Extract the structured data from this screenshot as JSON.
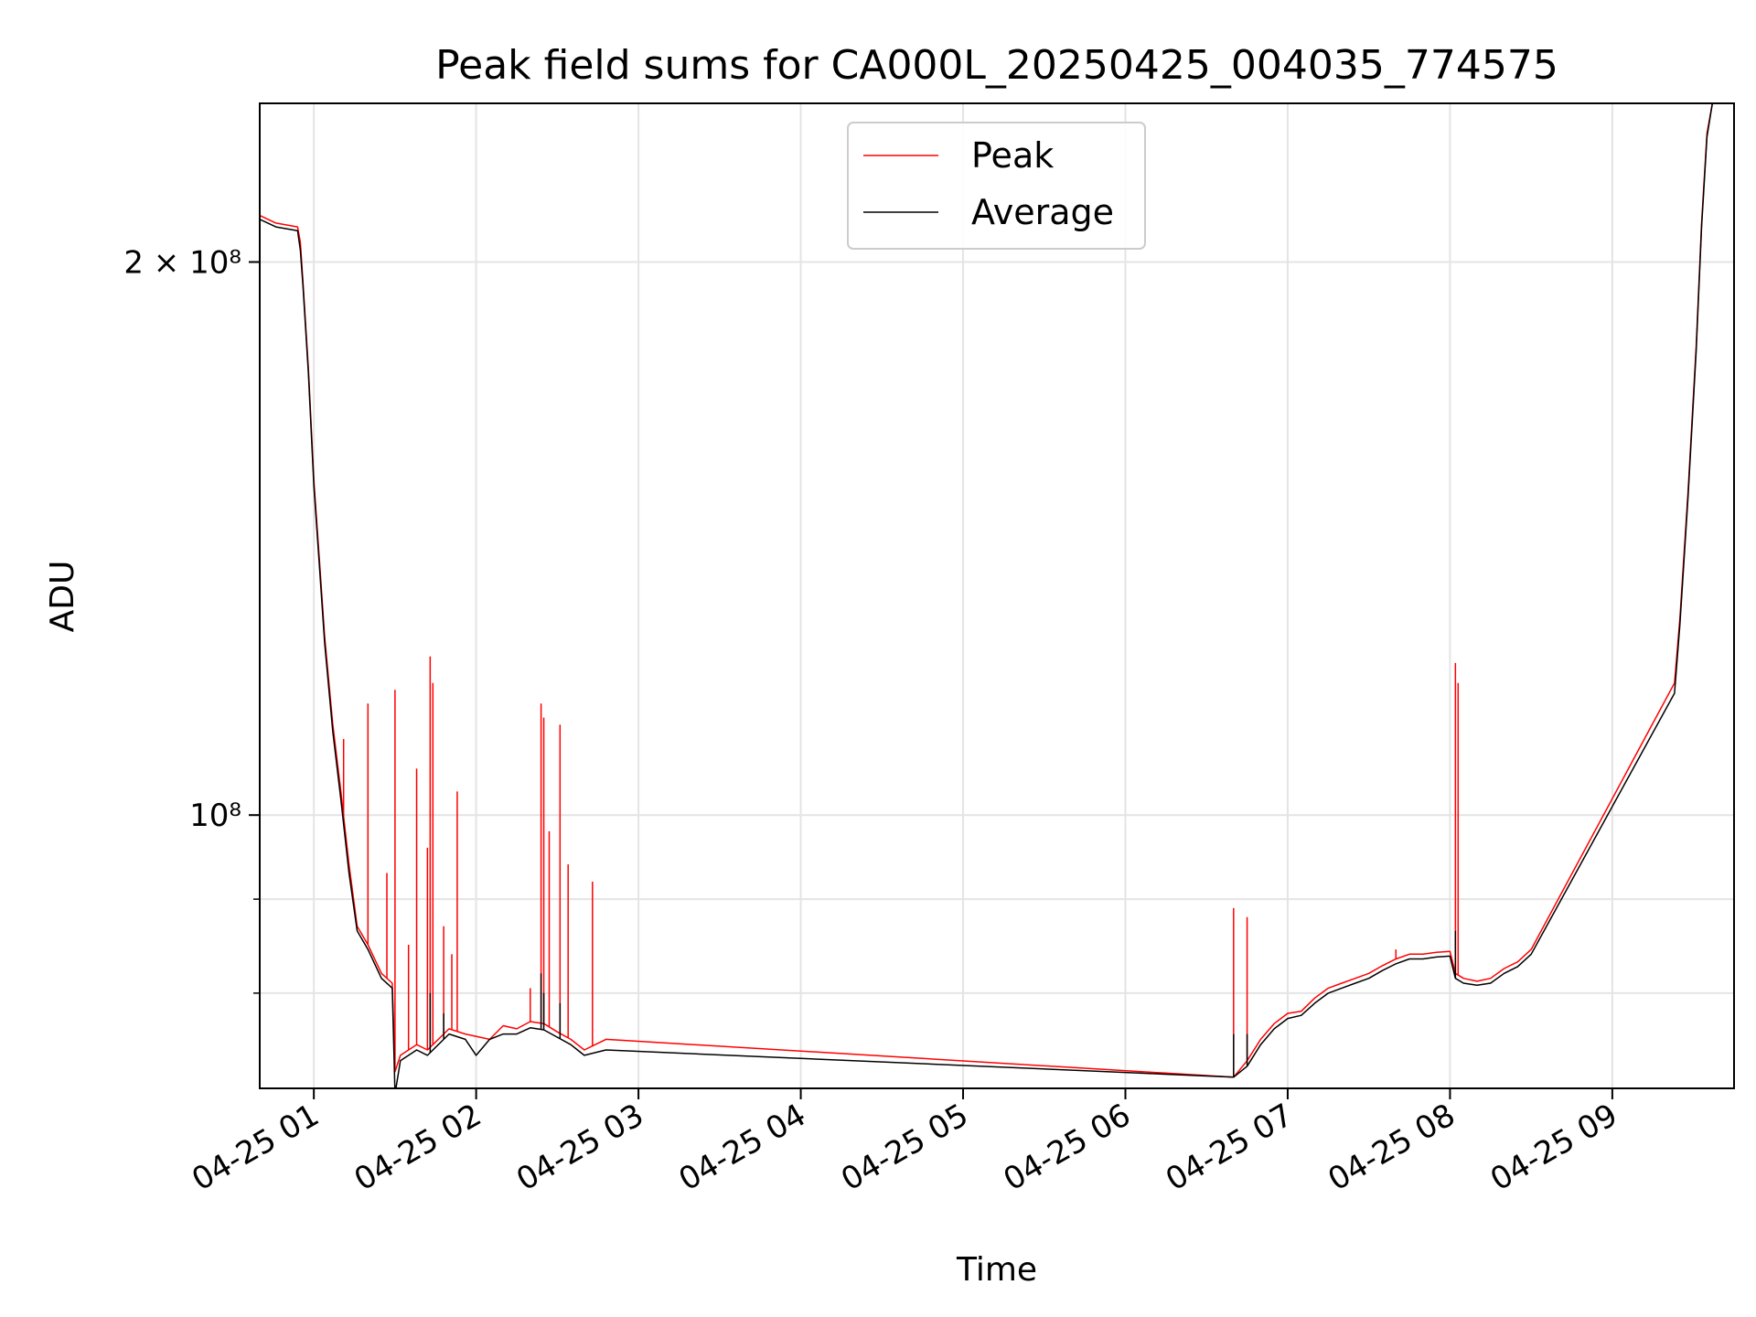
{
  "chart_data": {
    "type": "line",
    "title": "Peak field sums for CA000L_20250425_004035_774575",
    "xlabel": "Time",
    "ylabel": "ADU",
    "yscale": "log",
    "xlim": [
      "2025-04-25T00:40",
      "2025-04-25T09:45"
    ],
    "ylim": [
      71000000,
      244000000
    ],
    "grid": true,
    "legend": {
      "placement": "top-center"
    },
    "x_ticks": [
      {
        "label": "04-25 01",
        "t": "2025-04-25T01:00"
      },
      {
        "label": "04-25 02",
        "t": "2025-04-25T02:00"
      },
      {
        "label": "04-25 03",
        "t": "2025-04-25T03:00"
      },
      {
        "label": "04-25 04",
        "t": "2025-04-25T04:00"
      },
      {
        "label": "04-25 05",
        "t": "2025-04-25T05:00"
      },
      {
        "label": "04-25 06",
        "t": "2025-04-25T06:00"
      },
      {
        "label": "04-25 07",
        "t": "2025-04-25T07:00"
      },
      {
        "label": "04-25 08",
        "t": "2025-04-25T08:00"
      },
      {
        "label": "04-25 09",
        "t": "2025-04-25T09:00"
      }
    ],
    "y_ticks": [
      {
        "label": "10⁸",
        "value": 100000000
      },
      {
        "label": "2 × 10⁸",
        "value": 200000000
      }
    ],
    "y_minor_ticks": [
      80000000,
      90000000
    ],
    "series": [
      {
        "name": "Peak",
        "color": "#ff0000",
        "points": [
          [
            "2025-04-25T00:40",
            212000000
          ],
          [
            "2025-04-25T00:46",
            210000000
          ],
          [
            "2025-04-25T00:54",
            209000000
          ],
          [
            "2025-04-25T00:55",
            205000000
          ],
          [
            "2025-04-25T00:56",
            195000000
          ],
          [
            "2025-04-25T00:58",
            175000000
          ],
          [
            "2025-04-25T01:00",
            152000000
          ],
          [
            "2025-04-25T01:02",
            138000000
          ],
          [
            "2025-04-25T01:04",
            125000000
          ],
          [
            "2025-04-25T01:07",
            112000000
          ],
          [
            "2025-04-25T01:10",
            103000000
          ],
          [
            "2025-04-25T01:13",
            94000000
          ],
          [
            "2025-04-25T01:16",
            87000000
          ],
          [
            "2025-04-25T01:20",
            85000000
          ],
          [
            "2025-04-25T01:25",
            82000000
          ],
          [
            "2025-04-25T01:29",
            81000000
          ],
          [
            "2025-04-25T01:30",
            72500000
          ],
          [
            "2025-04-25T01:32",
            74000000
          ],
          [
            "2025-04-25T01:38",
            75000000
          ],
          [
            "2025-04-25T01:42",
            74500000
          ],
          [
            "2025-04-25T01:50",
            76500000
          ],
          [
            "2025-04-25T01:56",
            76000000
          ],
          [
            "2025-04-25T02:05",
            75500000
          ],
          [
            "2025-04-25T02:10",
            76800000
          ],
          [
            "2025-04-25T02:15",
            76500000
          ],
          [
            "2025-04-25T02:20",
            77200000
          ],
          [
            "2025-04-25T02:25",
            77000000
          ],
          [
            "2025-04-25T02:30",
            76200000
          ],
          [
            "2025-04-25T02:35",
            75500000
          ],
          [
            "2025-04-25T02:40",
            74500000
          ],
          [
            "2025-04-25T02:48",
            75500000
          ],
          [
            "2025-04-25T06:40",
            72000000
          ],
          [
            "2025-04-25T06:45",
            73500000
          ],
          [
            "2025-04-25T06:50",
            75500000
          ],
          [
            "2025-04-25T06:55",
            77000000
          ],
          [
            "2025-04-25T07:00",
            78000000
          ],
          [
            "2025-04-25T07:05",
            78200000
          ],
          [
            "2025-04-25T07:10",
            79500000
          ],
          [
            "2025-04-25T07:15",
            80500000
          ],
          [
            "2025-04-25T07:20",
            81000000
          ],
          [
            "2025-04-25T07:25",
            81500000
          ],
          [
            "2025-04-25T07:30",
            82000000
          ],
          [
            "2025-04-25T07:35",
            82800000
          ],
          [
            "2025-04-25T07:40",
            83500000
          ],
          [
            "2025-04-25T07:45",
            84000000
          ],
          [
            "2025-04-25T07:50",
            84000000
          ],
          [
            "2025-04-25T07:55",
            84200000
          ],
          [
            "2025-04-25T08:00",
            84300000
          ],
          [
            "2025-04-25T08:02",
            82000000
          ],
          [
            "2025-04-25T08:05",
            81500000
          ],
          [
            "2025-04-25T08:10",
            81200000
          ],
          [
            "2025-04-25T08:15",
            81500000
          ],
          [
            "2025-04-25T08:20",
            82500000
          ],
          [
            "2025-04-25T08:25",
            83200000
          ],
          [
            "2025-04-25T08:30",
            84500000
          ],
          [
            "2025-04-25T09:23",
            118000000
          ],
          [
            "2025-04-25T09:25",
            128000000
          ],
          [
            "2025-04-25T09:28",
            150000000
          ],
          [
            "2025-04-25T09:31",
            180000000
          ],
          [
            "2025-04-25T09:33",
            210000000
          ],
          [
            "2025-04-25T09:35",
            235000000
          ],
          [
            "2025-04-25T09:37",
            244000000
          ]
        ],
        "spikes": [
          [
            "2025-04-25T01:11",
            110000000
          ],
          [
            "2025-04-25T01:20",
            115000000
          ],
          [
            "2025-04-25T01:27",
            93000000
          ],
          [
            "2025-04-25T01:30",
            117000000
          ],
          [
            "2025-04-25T01:35",
            85000000
          ],
          [
            "2025-04-25T01:38",
            106000000
          ],
          [
            "2025-04-25T01:42",
            96000000
          ],
          [
            "2025-04-25T01:43",
            122000000
          ],
          [
            "2025-04-25T01:44",
            118000000
          ],
          [
            "2025-04-25T01:48",
            87000000
          ],
          [
            "2025-04-25T01:51",
            84000000
          ],
          [
            "2025-04-25T01:53",
            103000000
          ],
          [
            "2025-04-25T02:20",
            80500000
          ],
          [
            "2025-04-25T02:24",
            115000000
          ],
          [
            "2025-04-25T02:25",
            113000000
          ],
          [
            "2025-04-25T02:27",
            98000000
          ],
          [
            "2025-04-25T02:31",
            112000000
          ],
          [
            "2025-04-25T02:34",
            94000000
          ],
          [
            "2025-04-25T02:43",
            92000000
          ],
          [
            "2025-04-25T06:40",
            89000000
          ],
          [
            "2025-04-25T06:45",
            88000000
          ],
          [
            "2025-04-25T07:40",
            84500000
          ],
          [
            "2025-04-25T08:02",
            121000000
          ],
          [
            "2025-04-25T08:03",
            118000000
          ]
        ]
      },
      {
        "name": "Average",
        "color": "#000000",
        "points": [
          [
            "2025-04-25T00:40",
            211000000
          ],
          [
            "2025-04-25T00:46",
            209000000
          ],
          [
            "2025-04-25T00:54",
            208000000
          ],
          [
            "2025-04-25T00:55",
            203000000
          ],
          [
            "2025-04-25T00:56",
            194000000
          ],
          [
            "2025-04-25T00:58",
            174000000
          ],
          [
            "2025-04-25T01:00",
            151000000
          ],
          [
            "2025-04-25T01:02",
            137000000
          ],
          [
            "2025-04-25T01:04",
            124000000
          ],
          [
            "2025-04-25T01:07",
            111000000
          ],
          [
            "2025-04-25T01:10",
            102000000
          ],
          [
            "2025-04-25T01:13",
            93000000
          ],
          [
            "2025-04-25T01:16",
            86500000
          ],
          [
            "2025-04-25T01:20",
            84500000
          ],
          [
            "2025-04-25T01:25",
            81500000
          ],
          [
            "2025-04-25T01:29",
            80500000
          ],
          [
            "2025-04-25T01:30",
            70500000
          ],
          [
            "2025-04-25T01:32",
            73500000
          ],
          [
            "2025-04-25T01:38",
            74500000
          ],
          [
            "2025-04-25T01:42",
            74000000
          ],
          [
            "2025-04-25T01:50",
            76000000
          ],
          [
            "2025-04-25T01:56",
            75500000
          ],
          [
            "2025-04-25T02:00",
            74000000
          ],
          [
            "2025-04-25T02:05",
            75500000
          ],
          [
            "2025-04-25T02:10",
            76000000
          ],
          [
            "2025-04-25T02:15",
            76000000
          ],
          [
            "2025-04-25T02:20",
            76600000
          ],
          [
            "2025-04-25T02:25",
            76400000
          ],
          [
            "2025-04-25T02:30",
            75700000
          ],
          [
            "2025-04-25T02:35",
            75000000
          ],
          [
            "2025-04-25T02:40",
            74000000
          ],
          [
            "2025-04-25T02:48",
            74500000
          ],
          [
            "2025-04-25T06:40",
            72000000
          ],
          [
            "2025-04-25T06:45",
            73000000
          ],
          [
            "2025-04-25T06:50",
            75000000
          ],
          [
            "2025-04-25T06:55",
            76500000
          ],
          [
            "2025-04-25T07:00",
            77500000
          ],
          [
            "2025-04-25T07:05",
            77800000
          ],
          [
            "2025-04-25T07:10",
            79000000
          ],
          [
            "2025-04-25T07:15",
            80000000
          ],
          [
            "2025-04-25T07:20",
            80500000
          ],
          [
            "2025-04-25T07:25",
            81000000
          ],
          [
            "2025-04-25T07:30",
            81500000
          ],
          [
            "2025-04-25T07:35",
            82300000
          ],
          [
            "2025-04-25T07:40",
            83000000
          ],
          [
            "2025-04-25T07:45",
            83500000
          ],
          [
            "2025-04-25T07:50",
            83500000
          ],
          [
            "2025-04-25T07:55",
            83700000
          ],
          [
            "2025-04-25T08:00",
            83800000
          ],
          [
            "2025-04-25T08:02",
            81500000
          ],
          [
            "2025-04-25T08:05",
            81000000
          ],
          [
            "2025-04-25T08:10",
            80800000
          ],
          [
            "2025-04-25T08:15",
            81000000
          ],
          [
            "2025-04-25T08:20",
            82000000
          ],
          [
            "2025-04-25T08:25",
            82700000
          ],
          [
            "2025-04-25T08:30",
            84000000
          ],
          [
            "2025-04-25T09:23",
            116500000
          ],
          [
            "2025-04-25T09:25",
            127000000
          ],
          [
            "2025-04-25T09:28",
            149000000
          ],
          [
            "2025-04-25T09:31",
            179000000
          ],
          [
            "2025-04-25T09:33",
            209000000
          ],
          [
            "2025-04-25T09:35",
            234000000
          ],
          [
            "2025-04-25T09:37",
            244000000
          ]
        ],
        "spikes": [
          [
            "2025-04-25T01:43",
            80000000
          ],
          [
            "2025-04-25T01:48",
            78000000
          ],
          [
            "2025-04-25T02:24",
            82000000
          ],
          [
            "2025-04-25T02:25",
            80000000
          ],
          [
            "2025-04-25T02:31",
            79000000
          ],
          [
            "2025-04-25T06:40",
            76000000
          ],
          [
            "2025-04-25T06:45",
            76000000
          ],
          [
            "2025-04-25T08:02",
            86500000
          ]
        ]
      }
    ]
  }
}
